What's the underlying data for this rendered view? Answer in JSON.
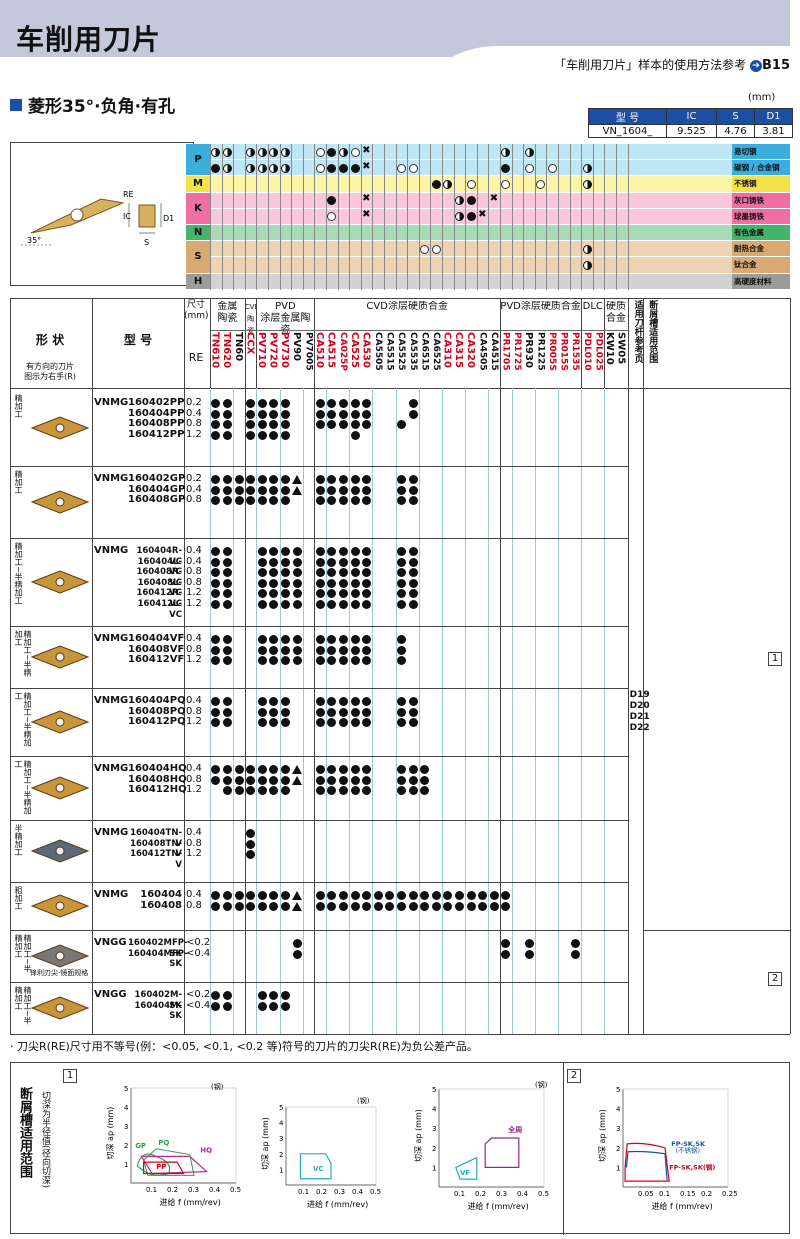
{
  "header": {
    "title": "车削用刀片",
    "ref_text": "「车削用刀片」样本的使用方法参考",
    "ref_page": "B15"
  },
  "section": {
    "title": "菱形35°·负角·有孔",
    "unit": "(mm)"
  },
  "spec": {
    "headers": [
      "型 号",
      "IC",
      "S",
      "D1"
    ],
    "values": [
      "VN_1604_",
      "9.525",
      "4.76",
      "3.81"
    ]
  },
  "diagram": {
    "labels": [
      "RE",
      "IC",
      "D1",
      "S",
      "35°"
    ]
  },
  "iso": [
    {
      "letter": "P",
      "color": "#3aaedc",
      "band": "#bfe6f5",
      "materials": [
        "易切钢",
        "碳钢 / 合金钢"
      ]
    },
    {
      "letter": "M",
      "color": "#f3e24a",
      "band": "#fbf3a6",
      "materials": [
        "不锈钢"
      ]
    },
    {
      "letter": "K",
      "color": "#ef6fa2",
      "band": "#f9c6dc",
      "materials": [
        "灰口铸铁",
        "球墨铸铁"
      ]
    },
    {
      "letter": "N",
      "color": "#46b36b",
      "band": "#a7dab6",
      "materials": [
        "有色金属"
      ]
    },
    {
      "letter": "S",
      "color": "#d8a972",
      "band": "#ecd3b4",
      "materials": [
        "耐热合金",
        "钛合金"
      ]
    },
    {
      "letter": "H",
      "color": "#9c9c9c",
      "band": "#d2d2d2",
      "materials": [
        "高硬度材料"
      ]
    }
  ],
  "table_header": {
    "shape": "形 状",
    "shape_note": "有方向的刀片\n图示为右手(R)",
    "model": "型 号",
    "size": "尺寸\n(mm)",
    "re": "RE",
    "groups": [
      "金属\n陶瓷",
      "CVD\n陶瓷",
      "PVD\n涂层金属陶瓷",
      "CVD涂层硬质合金",
      "PVD涂层硬质合金",
      "DLC",
      "硬质\n合金",
      "适用刀杆参考页",
      "断屑槽适用范围"
    ],
    "grades": [
      {
        "n": "TN610",
        "c": "#d0021b"
      },
      {
        "n": "TN620",
        "c": "#d0021b"
      },
      {
        "n": "TN60",
        "c": "#111"
      },
      {
        "n": "CCX",
        "c": "#d0021b"
      },
      {
        "n": "PV710",
        "c": "#d0021b"
      },
      {
        "n": "PV720",
        "c": "#d0021b"
      },
      {
        "n": "PV730",
        "c": "#d0021b"
      },
      {
        "n": "PV90",
        "c": "#111"
      },
      {
        "n": "PV7005",
        "c": "#111"
      },
      {
        "n": "CA510",
        "c": "#d0021b"
      },
      {
        "n": "CA515",
        "c": "#d0021b"
      },
      {
        "n": "CA025P",
        "c": "#d0021b"
      },
      {
        "n": "CA525",
        "c": "#d0021b"
      },
      {
        "n": "CA530",
        "c": "#d0021b"
      },
      {
        "n": "CA5505",
        "c": "#111"
      },
      {
        "n": "CA5515",
        "c": "#111"
      },
      {
        "n": "CA5525",
        "c": "#111"
      },
      {
        "n": "CA5535",
        "c": "#111"
      },
      {
        "n": "CA6515",
        "c": "#111"
      },
      {
        "n": "CA6525",
        "c": "#111"
      },
      {
        "n": "CA310",
        "c": "#d0021b"
      },
      {
        "n": "CA315",
        "c": "#d0021b"
      },
      {
        "n": "CA320",
        "c": "#d0021b"
      },
      {
        "n": "CA4505",
        "c": "#111"
      },
      {
        "n": "CA4515",
        "c": "#111"
      },
      {
        "n": "PR1705",
        "c": "#d0021b"
      },
      {
        "n": "PR1725",
        "c": "#d0021b"
      },
      {
        "n": "PR930",
        "c": "#111"
      },
      {
        "n": "PR1225",
        "c": "#111"
      },
      {
        "n": "PR005S",
        "c": "#d0021b"
      },
      {
        "n": "PR015S",
        "c": "#d0021b"
      },
      {
        "n": "PR1535",
        "c": "#d0021b"
      },
      {
        "n": "PDL010",
        "c": "#d0021b"
      },
      {
        "n": "PDL025",
        "c": "#d0021b"
      },
      {
        "n": "KW10",
        "c": "#111"
      },
      {
        "n": "SW05",
        "c": "#111"
      }
    ]
  },
  "rows": [
    {
      "side": "精加工",
      "prefix": "VNMG",
      "models": [
        "160402PP",
        "160404PP",
        "160408PP",
        "160412PP"
      ],
      "re": [
        "0.2",
        "0.4",
        "0.8",
        "1.2"
      ]
    },
    {
      "side": "精加工",
      "prefix": "VNMG",
      "models": [
        "160402GP",
        "160404GP",
        "160408GP"
      ],
      "re": [
        "0.2",
        "0.4",
        "0.8"
      ]
    },
    {
      "side": "精加工~半精加工",
      "prefix": "VNMG",
      "models": [
        "160404R-VC",
        "160404L-VC",
        "160408R-VC",
        "160408L-VC",
        "160412R-VC",
        "160412L-VC"
      ],
      "re": [
        "0.4",
        "0.4",
        "0.8",
        "0.8",
        "1.2",
        "1.2"
      ]
    },
    {
      "side": "精加工~半精加工",
      "prefix": "VNMG",
      "models": [
        "160404VF",
        "160408VF",
        "160412VF"
      ],
      "re": [
        "0.4",
        "0.8",
        "1.2"
      ]
    },
    {
      "side": "精加工~半精加工",
      "prefix": "VNMG",
      "models": [
        "160404PQ",
        "160408PQ",
        "160412PQ"
      ],
      "re": [
        "0.4",
        "0.8",
        "1.2"
      ]
    },
    {
      "side": "精加工~半精加工",
      "prefix": "VNMG",
      "models": [
        "160404HQ",
        "160408HQ",
        "160412HQ"
      ],
      "re": [
        "0.4",
        "0.8",
        "1.2"
      ]
    },
    {
      "side": "半精加工",
      "prefix": "VNMG",
      "models": [
        "160404TN-V",
        "160408TN-V",
        "160412TN-V"
      ],
      "re": [
        "0.4",
        "0.8",
        "1.2"
      ]
    },
    {
      "side": "粗加工",
      "prefix": "VNMG",
      "models": [
        "160404",
        "160408"
      ],
      "re": [
        "0.4",
        "0.8"
      ]
    },
    {
      "side": "精加工~半精加工",
      "prefix": "VNGG",
      "models": [
        "160402MFP-SK",
        "160404MFP-SK"
      ],
      "re": [
        "<0.2",
        "<0.4"
      ],
      "note": "锋利刃尖·镜面规格"
    },
    {
      "side": "精加工~半精加工",
      "prefix": "VNGG",
      "models": [
        "160402M-SK",
        "160404M-SK"
      ],
      "re": [
        "<0.2",
        "<0.4"
      ]
    }
  ],
  "holder_refs": [
    "D19",
    "D20",
    "D21",
    "D22"
  ],
  "chip_refs": [
    "1",
    "2"
  ],
  "note": "· 刀尖R(RE)尺寸用不等号(例：<0.05, <0.1, <0.2 等)符号的刀片的刀尖R(RE)为负公差产品。",
  "bottom": {
    "title": "断屑槽适用范围",
    "sub": "切深为半径值(径向切深)",
    "box1": "1",
    "box2": "2",
    "steel": "(钢)",
    "ylabel": "切深 ap (mm)",
    "xlabel": "进给 f (mm/rev)",
    "g1": {
      "labels": [
        "GP",
        "PQ",
        "HQ",
        "PP"
      ],
      "x": [
        "0.1",
        "0.2",
        "0.3",
        "0.4",
        "0.5"
      ],
      "y": [
        "1",
        "2",
        "3",
        "4",
        "5"
      ]
    },
    "g2": {
      "labels": [
        "VC"
      ],
      "x": [
        "0.1",
        "0.2",
        "0.3",
        "0.4",
        "0.5"
      ],
      "y": [
        "1",
        "2",
        "3",
        "4",
        "5"
      ]
    },
    "g3": {
      "labels": [
        "VF",
        "全周"
      ],
      "x": [
        "0.1",
        "0.2",
        "0.3",
        "0.4",
        "0.5"
      ],
      "y": [
        "1",
        "2",
        "3",
        "4",
        "5"
      ]
    },
    "g4": {
      "labels": [
        "FP-SK,SK",
        "(不锈钢)",
        "FP-SK,SK(钢)"
      ],
      "x": [
        "0.05",
        "0.1",
        "0.15",
        "0.2",
        "0.25"
      ],
      "y": [
        "1",
        "2",
        "3",
        "4",
        "5"
      ]
    }
  }
}
